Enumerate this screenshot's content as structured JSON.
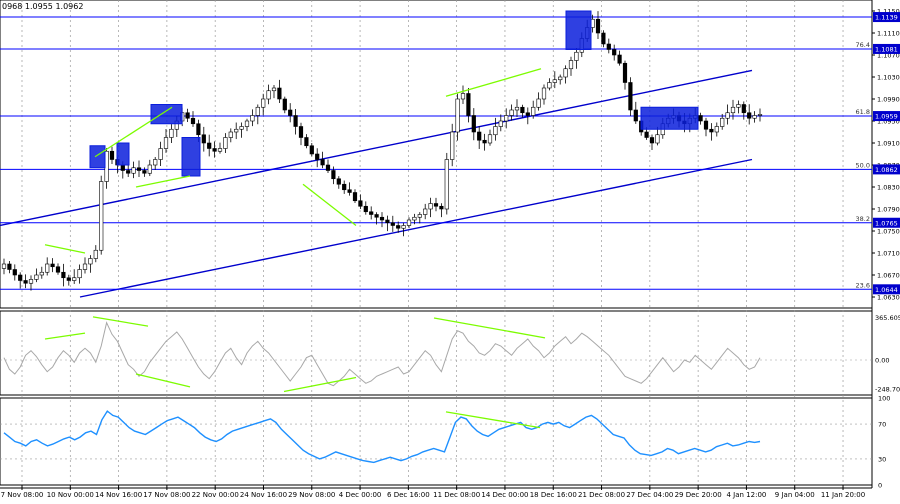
{
  "header": {
    "quote_text": "0968 1.0955 1.0962"
  },
  "colors": {
    "background": "#ffffff",
    "candle": "#000000",
    "level_line": "#0000ff",
    "channel_line": "#0000cc",
    "highlight_box": "#0a1edc",
    "divergence_line": "#7cfc00",
    "cci_line": "#a8a8a8",
    "rsi_line": "#1e90ff",
    "grid": "#9a9a9a",
    "current_price_bg": "#0000cc"
  },
  "chart_data": [
    {
      "type": "line",
      "name_hint": "main",
      "ylim": [
        1.061,
        1.117
      ],
      "y_ticks": [
        "1.1150",
        "1.1110",
        "1.1070",
        "1.1030",
        "1.0990",
        "1.0950",
        "1.0910",
        "1.0870",
        "1.0830",
        "1.0790",
        "1.0750",
        "1.0710",
        "1.0670",
        "1.0630"
      ],
      "y_tick_values": [
        1.115,
        1.111,
        1.107,
        1.103,
        1.099,
        1.095,
        1.091,
        1.087,
        1.083,
        1.079,
        1.075,
        1.071,
        1.067,
        1.063
      ],
      "levels": [
        {
          "price": 1.1139,
          "label": "1.1139",
          "fib": ""
        },
        {
          "price": 1.1081,
          "label": "1.1081",
          "fib": "76.4"
        },
        {
          "price": 1.0959,
          "label": "1.0959",
          "fib": "61.8"
        },
        {
          "price": 1.0862,
          "label": "1.0862",
          "fib": "50.0"
        },
        {
          "price": 1.0765,
          "label": "1.0765",
          "fib": "38.2"
        },
        {
          "price": 1.0644,
          "label": "1.0644",
          "fib": "23.6"
        }
      ],
      "current_price": "1.0962",
      "x_labels": [
        "7 Nov 08:00",
        "10 Nov 00:00",
        "14 Nov 16:00",
        "17 Nov 08:00",
        "22 Nov 00:00",
        "24 Nov 16:00",
        "29 Nov 08:00",
        "4 Dec 00:00",
        "6 Dec 16:00",
        "11 Dec 08:00",
        "14 Dec 00:00",
        "18 Dec 16:00",
        "21 Dec 08:00",
        "27 Dec 04:00",
        "29 Dec 20:00",
        "4 Jan 12:00",
        "9 Jan 04:00",
        "11 Jan 20:00"
      ],
      "close_series": [
        1.069,
        1.068,
        1.067,
        1.066,
        1.0655,
        1.0662,
        1.067,
        1.0675,
        1.069,
        1.0685,
        1.0675,
        1.0665,
        1.066,
        1.0665,
        1.068,
        1.069,
        1.07,
        1.0715,
        1.084,
        1.0895,
        1.088,
        1.087,
        1.086,
        1.0855,
        1.0865,
        1.086,
        1.0855,
        1.087,
        1.088,
        1.09,
        1.092,
        1.0935,
        1.095,
        1.0965,
        1.0955,
        1.0945,
        1.0925,
        1.091,
        1.09,
        1.0895,
        1.09,
        1.092,
        1.093,
        1.0935,
        1.094,
        1.095,
        1.096,
        1.0975,
        1.099,
        1.1005,
        1.101,
        1.099,
        1.097,
        1.096,
        1.094,
        1.092,
        1.0905,
        1.089,
        1.088,
        1.087,
        1.086,
        1.0845,
        1.0835,
        1.0825,
        1.082,
        1.0805,
        1.0795,
        1.0785,
        1.078,
        1.0775,
        1.077,
        1.0765,
        1.076,
        1.0755,
        1.076,
        1.077,
        1.0775,
        1.078,
        1.079,
        1.08,
        1.0795,
        1.079,
        1.088,
        1.093,
        1.099,
        1.1,
        1.096,
        1.093,
        1.0915,
        1.091,
        1.0925,
        1.094,
        1.095,
        1.096,
        1.097,
        1.0975,
        1.0965,
        1.096,
        1.0975,
        1.099,
        1.101,
        1.102,
        1.1025,
        1.103,
        1.1045,
        1.106,
        1.1075,
        1.11,
        1.112,
        1.1135,
        1.111,
        1.109,
        1.108,
        1.107,
        1.1055,
        1.102,
        1.097,
        1.095,
        1.093,
        1.092,
        1.091,
        1.0925,
        1.0945,
        1.0955,
        1.096,
        1.095,
        1.0945,
        1.0955,
        1.096,
        1.095,
        1.0935,
        1.093,
        1.094,
        1.0955,
        1.0965,
        1.0975,
        1.098,
        1.0965,
        1.0955,
        1.096,
        1.0962
      ]
    },
    {
      "type": "line",
      "name_hint": "cci",
      "ylim": [
        -300,
        420
      ],
      "y_ticks": [
        "365.6053",
        "0.00",
        "-248.703"
      ],
      "y_tick_values": [
        365.6053,
        0,
        -248.703
      ],
      "values": [
        20,
        -80,
        -120,
        -60,
        40,
        80,
        30,
        -40,
        -100,
        -60,
        20,
        80,
        40,
        -20,
        60,
        100,
        60,
        -20,
        120,
        320,
        220,
        160,
        60,
        -40,
        -80,
        -140,
        -100,
        -20,
        40,
        100,
        160,
        200,
        240,
        180,
        100,
        20,
        -60,
        -120,
        -160,
        -100,
        -20,
        60,
        100,
        20,
        -40,
        60,
        120,
        160,
        100,
        60,
        0,
        -60,
        -120,
        -180,
        -120,
        -60,
        20,
        40,
        -40,
        -120,
        -200,
        -220,
        -180,
        -140,
        -80,
        -120,
        -160,
        -200,
        -180,
        -140,
        -120,
        -100,
        -80,
        -60,
        -120,
        -100,
        -40,
        20,
        80,
        40,
        -40,
        -100,
        40,
        180,
        250,
        230,
        160,
        120,
        60,
        40,
        80,
        140,
        120,
        80,
        40,
        100,
        140,
        180,
        120,
        80,
        20,
        60,
        120,
        160,
        200,
        140,
        180,
        230,
        200,
        160,
        120,
        80,
        40,
        -20,
        -80,
        -140,
        -160,
        -180,
        -200,
        -160,
        -100,
        -40,
        20,
        -40,
        -100,
        -60,
        0,
        -20,
        40,
        0,
        -40,
        -80,
        -20,
        40,
        100,
        60,
        20,
        -40,
        -80,
        -60,
        20
      ]
    },
    {
      "type": "line",
      "name_hint": "rsi",
      "ylim": [
        0,
        100
      ],
      "y_ticks": [
        "100",
        "70",
        "30",
        "0"
      ],
      "y_tick_values": [
        100,
        70,
        30,
        0
      ],
      "values": [
        60,
        55,
        50,
        48,
        45,
        50,
        52,
        48,
        45,
        47,
        50,
        53,
        55,
        52,
        55,
        60,
        62,
        58,
        75,
        85,
        80,
        78,
        72,
        66,
        62,
        60,
        58,
        62,
        66,
        70,
        74,
        76,
        78,
        74,
        70,
        66,
        60,
        55,
        52,
        50,
        53,
        58,
        62,
        64,
        66,
        68,
        70,
        72,
        74,
        76,
        72,
        64,
        58,
        52,
        46,
        40,
        36,
        33,
        30,
        32,
        35,
        38,
        36,
        34,
        32,
        30,
        28,
        27,
        26,
        28,
        30,
        32,
        30,
        28,
        30,
        33,
        35,
        38,
        40,
        42,
        40,
        38,
        55,
        72,
        78,
        76,
        68,
        62,
        58,
        56,
        60,
        64,
        66,
        68,
        70,
        72,
        66,
        64,
        66,
        70,
        72,
        70,
        72,
        68,
        66,
        70,
        74,
        78,
        80,
        76,
        70,
        64,
        58,
        56,
        54,
        46,
        40,
        36,
        35,
        34,
        36,
        38,
        42,
        40,
        36,
        38,
        40,
        42,
        40,
        38,
        40,
        44,
        46,
        48,
        45,
        46,
        48,
        50,
        49,
        50
      ]
    }
  ]
}
